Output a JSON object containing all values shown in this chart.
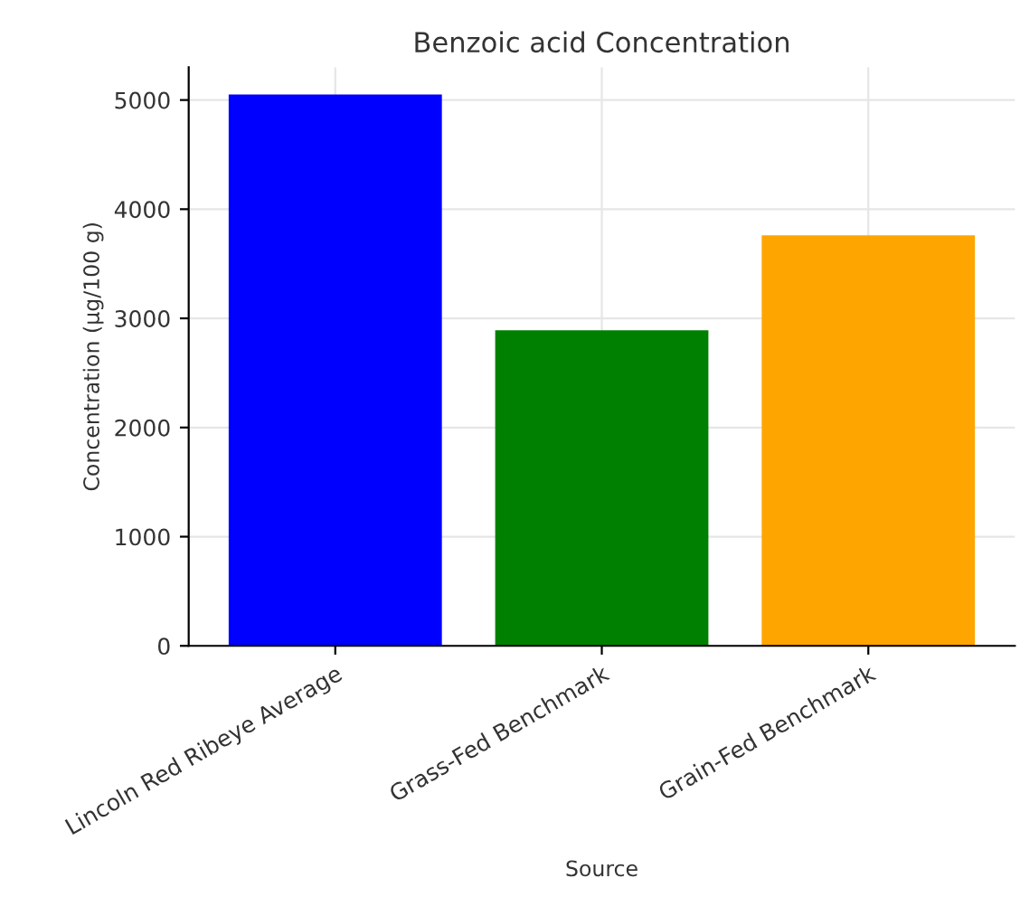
{
  "chart_data": {
    "type": "bar",
    "title": "Benzoic acid Concentration",
    "xlabel": "Source",
    "ylabel": "Concentration (µg/100 g)",
    "categories": [
      "Lincoln Red Ribeye Average",
      "Grass-Fed Benchmark",
      "Grain-Fed Benchmark"
    ],
    "values": [
      5050,
      2890,
      3760
    ],
    "colors": [
      "#0000ff",
      "#008000",
      "#ffa500"
    ],
    "ylim": [
      0,
      5300
    ],
    "yticks": [
      0,
      1000,
      2000,
      3000,
      4000,
      5000
    ],
    "grid": true
  }
}
